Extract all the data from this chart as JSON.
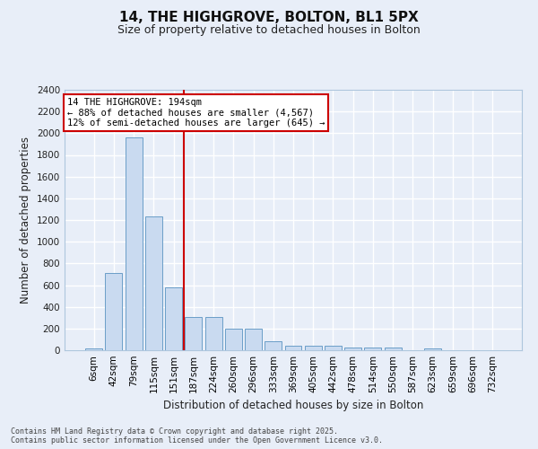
{
  "title_line1": "14, THE HIGHGROVE, BOLTON, BL1 5PX",
  "title_line2": "Size of property relative to detached houses in Bolton",
  "xlabel": "Distribution of detached houses by size in Bolton",
  "ylabel": "Number of detached properties",
  "footer": "Contains HM Land Registry data © Crown copyright and database right 2025.\nContains public sector information licensed under the Open Government Licence v3.0.",
  "bar_labels": [
    "6sqm",
    "42sqm",
    "79sqm",
    "115sqm",
    "151sqm",
    "187sqm",
    "224sqm",
    "260sqm",
    "296sqm",
    "333sqm",
    "369sqm",
    "405sqm",
    "442sqm",
    "478sqm",
    "514sqm",
    "550sqm",
    "587sqm",
    "623sqm",
    "659sqm",
    "696sqm",
    "732sqm"
  ],
  "bar_values": [
    15,
    710,
    1960,
    1235,
    580,
    310,
    305,
    200,
    200,
    80,
    45,
    38,
    38,
    28,
    28,
    28,
    0,
    18,
    0,
    0,
    0
  ],
  "bar_color": "#c9daf0",
  "bar_edgecolor": "#6b9ec8",
  "ylim": [
    0,
    2400
  ],
  "yticks": [
    0,
    200,
    400,
    600,
    800,
    1000,
    1200,
    1400,
    1600,
    1800,
    2000,
    2200,
    2400
  ],
  "vline_x": 4.5,
  "vline_color": "#cc0000",
  "annotation_text": "14 THE HIGHGROVE: 194sqm\n← 88% of detached houses are smaller (4,567)\n12% of semi-detached houses are larger (645) →",
  "annotation_box_color": "#cc0000",
  "bg_color": "#e8eef8",
  "plot_bg_color": "#e8eef8",
  "grid_color": "#ffffff",
  "title_fontsize": 11,
  "subtitle_fontsize": 9,
  "xlabel_fontsize": 8.5,
  "ylabel_fontsize": 8.5,
  "tick_fontsize": 7.5,
  "footer_fontsize": 6,
  "annotation_fontsize": 7.5
}
